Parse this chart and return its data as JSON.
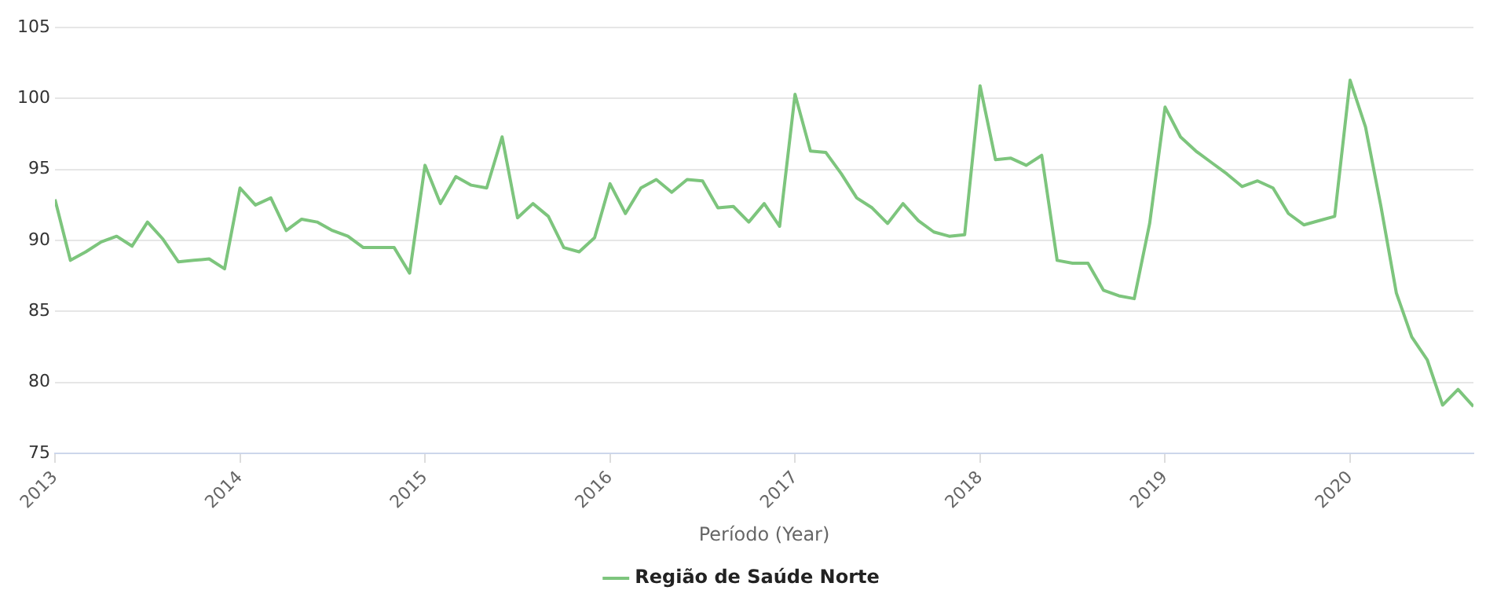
{
  "chart_data": {
    "type": "line",
    "xlabel": "Período (Year)",
    "x": [
      "2013-01",
      "2013-02",
      "2013-03",
      "2013-04",
      "2013-05",
      "2013-06",
      "2013-07",
      "2013-08",
      "2013-09",
      "2013-10",
      "2013-11",
      "2013-12",
      "2014-01",
      "2014-02",
      "2014-03",
      "2014-04",
      "2014-05",
      "2014-06",
      "2014-07",
      "2014-08",
      "2014-09",
      "2014-10",
      "2014-11",
      "2014-12",
      "2015-01",
      "2015-02",
      "2015-03",
      "2015-04",
      "2015-05",
      "2015-06",
      "2015-07",
      "2015-08",
      "2015-09",
      "2015-10",
      "2015-11",
      "2015-12",
      "2016-01",
      "2016-02",
      "2016-03",
      "2016-04",
      "2016-05",
      "2016-06",
      "2016-07",
      "2016-08",
      "2016-09",
      "2016-10",
      "2016-11",
      "2016-12",
      "2017-01",
      "2017-02",
      "2017-03",
      "2017-04",
      "2017-05",
      "2017-06",
      "2017-07",
      "2017-08",
      "2017-09",
      "2017-10",
      "2017-11",
      "2017-12",
      "2018-01",
      "2018-02",
      "2018-03",
      "2018-04",
      "2018-05",
      "2018-06",
      "2018-07",
      "2018-08",
      "2018-09",
      "2018-10",
      "2018-11",
      "2018-12",
      "2019-01",
      "2019-02",
      "2019-03",
      "2019-04",
      "2019-05",
      "2019-06",
      "2019-07",
      "2019-08",
      "2019-09",
      "2019-10",
      "2019-11",
      "2019-12",
      "2020-01",
      "2020-02",
      "2020-03",
      "2020-04",
      "2020-05",
      "2020-06",
      "2020-07",
      "2020-08",
      "2020-09"
    ],
    "series": [
      {
        "name": "Região de Saúde Norte",
        "color": "#7dc57d",
        "values": [
          92.9,
          88.6,
          89.2,
          89.9,
          90.3,
          89.6,
          91.3,
          90.1,
          88.5,
          88.6,
          88.7,
          88.0,
          93.7,
          92.5,
          93.0,
          90.7,
          91.5,
          91.3,
          90.7,
          90.3,
          89.5,
          89.5,
          89.5,
          87.7,
          95.3,
          92.6,
          94.5,
          93.9,
          93.7,
          97.3,
          91.6,
          92.6,
          91.7,
          89.5,
          89.2,
          90.2,
          94.0,
          91.9,
          93.7,
          94.3,
          93.4,
          94.3,
          94.2,
          92.3,
          92.4,
          91.3,
          92.6,
          91.0,
          100.3,
          96.3,
          96.2,
          94.7,
          93.0,
          92.3,
          91.2,
          92.6,
          91.4,
          90.6,
          90.3,
          90.4,
          100.9,
          95.7,
          95.8,
          95.3,
          96.0,
          88.6,
          88.4,
          88.4,
          86.5,
          86.1,
          85.9,
          91.2,
          99.4,
          97.3,
          96.3,
          95.5,
          94.7,
          93.8,
          94.2,
          93.7,
          91.9,
          91.1,
          91.4,
          91.7,
          101.3,
          98.0,
          92.4,
          86.3,
          83.2,
          81.6,
          78.4,
          79.5,
          78.3
        ]
      }
    ],
    "xlim": [
      "2013-01",
      "2020-09"
    ],
    "xticks": [
      "2013",
      "2014",
      "2015",
      "2016",
      "2017",
      "2018",
      "2019",
      "2020"
    ],
    "ylim": [
      75,
      105
    ],
    "yticks": [
      75,
      80,
      85,
      90,
      95,
      100,
      105
    ],
    "grid": "y",
    "legend": "bottom",
    "marker": "none",
    "line_style": "solid"
  }
}
